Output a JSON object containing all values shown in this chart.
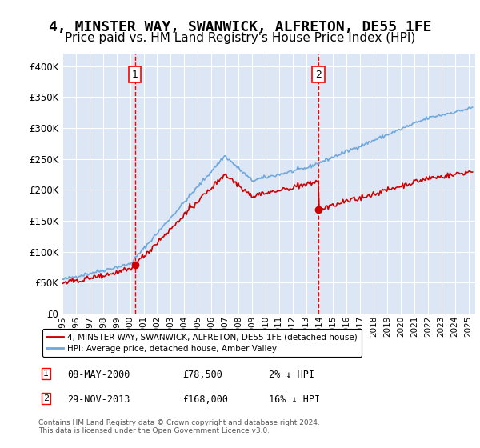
{
  "title": "4, MINSTER WAY, SWANWICK, ALFRETON, DE55 1FE",
  "subtitle": "Price paid vs. HM Land Registry's House Price Index (HPI)",
  "title_fontsize": 13,
  "subtitle_fontsize": 11,
  "background_color": "#ffffff",
  "plot_background_color": "#dce6f5",
  "grid_color": "#ffffff",
  "hpi_color": "#6fa8dc",
  "price_color": "#cc0000",
  "annotation1_date_num": 2000.35,
  "annotation2_date_num": 2013.91,
  "purchase1": {
    "date": "08-MAY-2000",
    "price": 78500,
    "pct": "2%",
    "dir": "↓"
  },
  "purchase2": {
    "date": "29-NOV-2013",
    "price": 168000,
    "pct": "16%",
    "dir": "↓"
  },
  "legend_label_price": "4, MINSTER WAY, SWANWICK, ALFRETON, DE55 1FE (detached house)",
  "legend_label_hpi": "HPI: Average price, detached house, Amber Valley",
  "footer": "Contains HM Land Registry data © Crown copyright and database right 2024.\nThis data is licensed under the Open Government Licence v3.0.",
  "ylim": [
    0,
    420000
  ],
  "yticks": [
    0,
    50000,
    100000,
    150000,
    200000,
    250000,
    300000,
    350000,
    400000
  ],
  "xmin": 1995.0,
  "xmax": 2025.5
}
